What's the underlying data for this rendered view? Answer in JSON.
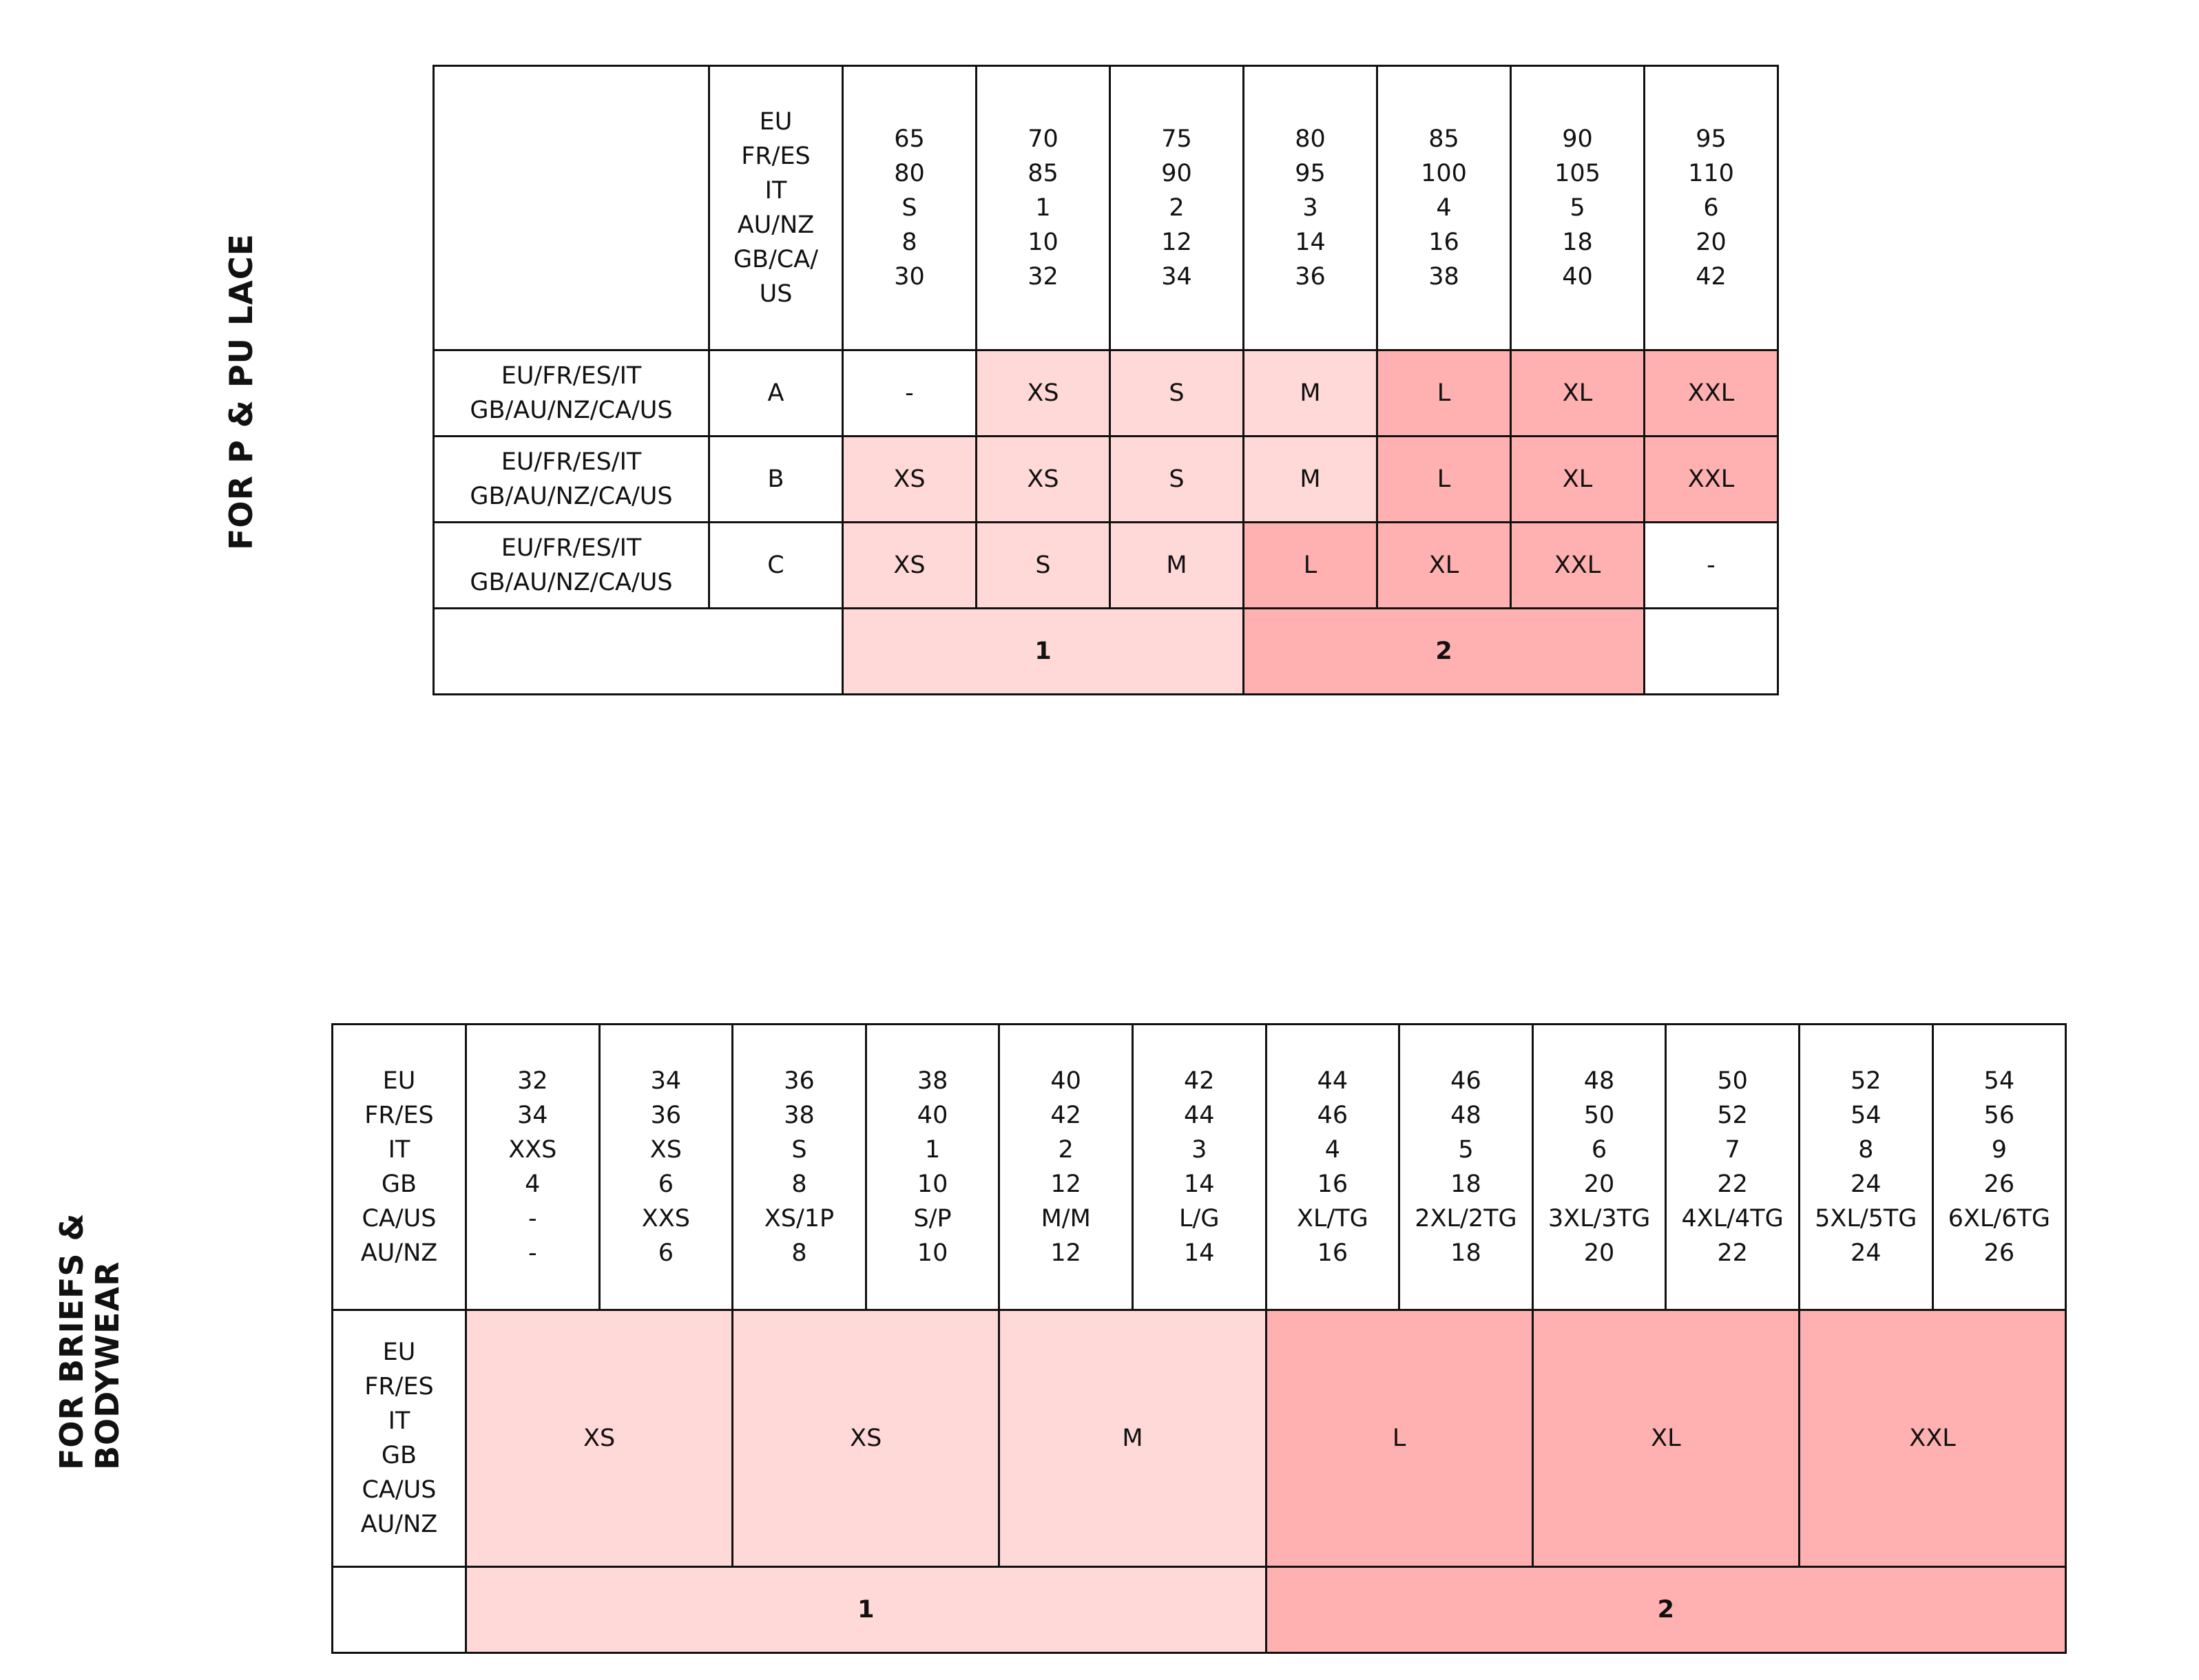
{
  "colors": {
    "light": "#FFD8D8",
    "dark": "#FFB0B0",
    "border": "#111111"
  },
  "bra_table": {
    "section_label": "FOR P & PU LACE",
    "header_label": "EU\nFR/ES\nIT\nAU/NZ\nGB/CA/\nUS",
    "columns": [
      "65\n80\nS\n8\n30",
      "70\n85\n1\n10\n32",
      "75\n90\n2\n12\n34",
      "80\n95\n3\n14\n36",
      "85\n100\n4\n16\n38",
      "90\n105\n5\n18\n40",
      "95\n110\n6\n20\n42"
    ],
    "rows": [
      {
        "label": "EU/FR/ES/IT\nGB/AU/NZ/CA/US",
        "cup": "A",
        "cells": [
          {
            "v": "-",
            "tone": "none"
          },
          {
            "v": "XS",
            "tone": "light"
          },
          {
            "v": "S",
            "tone": "light"
          },
          {
            "v": "M",
            "tone": "light"
          },
          {
            "v": "L",
            "tone": "dark"
          },
          {
            "v": "XL",
            "tone": "dark"
          },
          {
            "v": "XXL",
            "tone": "dark"
          }
        ]
      },
      {
        "label": "EU/FR/ES/IT\nGB/AU/NZ/CA/US",
        "cup": "B",
        "cells": [
          {
            "v": "XS",
            "tone": "light"
          },
          {
            "v": "XS",
            "tone": "light"
          },
          {
            "v": "S",
            "tone": "light"
          },
          {
            "v": "M",
            "tone": "light"
          },
          {
            "v": "L",
            "tone": "dark"
          },
          {
            "v": "XL",
            "tone": "dark"
          },
          {
            "v": "XXL",
            "tone": "dark"
          }
        ]
      },
      {
        "label": "EU/FR/ES/IT\nGB/AU/NZ/CA/US",
        "cup": "C",
        "cells": [
          {
            "v": "XS",
            "tone": "light"
          },
          {
            "v": "S",
            "tone": "light"
          },
          {
            "v": "M",
            "tone": "light"
          },
          {
            "v": "L",
            "tone": "dark"
          },
          {
            "v": "XL",
            "tone": "dark"
          },
          {
            "v": "XXL",
            "tone": "dark"
          },
          {
            "v": "-",
            "tone": "none"
          }
        ]
      }
    ],
    "groups": [
      {
        "v": "",
        "span": 2,
        "tone": "none"
      },
      {
        "v": "1",
        "span": 3,
        "tone": "light"
      },
      {
        "v": "2",
        "span": 3,
        "tone": "dark"
      },
      {
        "v": "",
        "span": 1,
        "tone": "none"
      }
    ]
  },
  "briefs_table": {
    "section_label": "FOR BRIEFS &\nBODYWEAR",
    "header_label": "EU\nFR/ES\nIT\nGB\nCA/US\nAU/NZ",
    "columns": [
      "32\n34\nXXS\n4\n-\n-",
      "34\n36\nXS\n6\nXXS\n6",
      "36\n38\nS\n8\nXS/1P\n8",
      "38\n40\n1\n10\nS/P\n10",
      "40\n42\n2\n12\nM/M\n12",
      "42\n44\n3\n14\nL/G\n14",
      "44\n46\n4\n16\nXL/TG\n16",
      "46\n48\n5\n18\n2XL/2TG\n18",
      "48\n50\n6\n20\n3XL/3TG\n20",
      "50\n52\n7\n22\n4XL/4TG\n22",
      "52\n54\n8\n24\n5XL/5TG\n24",
      "54\n56\n9\n26\n6XL/6TG\n26"
    ],
    "size_label": "EU\nFR/ES\nIT\nGB\nCA/US\nAU/NZ",
    "sizes": [
      {
        "v": "XS",
        "span": 2,
        "tone": "light"
      },
      {
        "v": "XS",
        "span": 2,
        "tone": "light"
      },
      {
        "v": "M",
        "span": 2,
        "tone": "light"
      },
      {
        "v": "L",
        "span": 2,
        "tone": "dark"
      },
      {
        "v": "XL",
        "span": 2,
        "tone": "dark"
      },
      {
        "v": "XXL",
        "span": 2,
        "tone": "dark"
      }
    ],
    "groups": [
      {
        "v": "",
        "span": 1,
        "tone": "none"
      },
      {
        "v": "1",
        "span": 6,
        "tone": "light"
      },
      {
        "v": "2",
        "span": 6,
        "tone": "dark"
      }
    ]
  }
}
